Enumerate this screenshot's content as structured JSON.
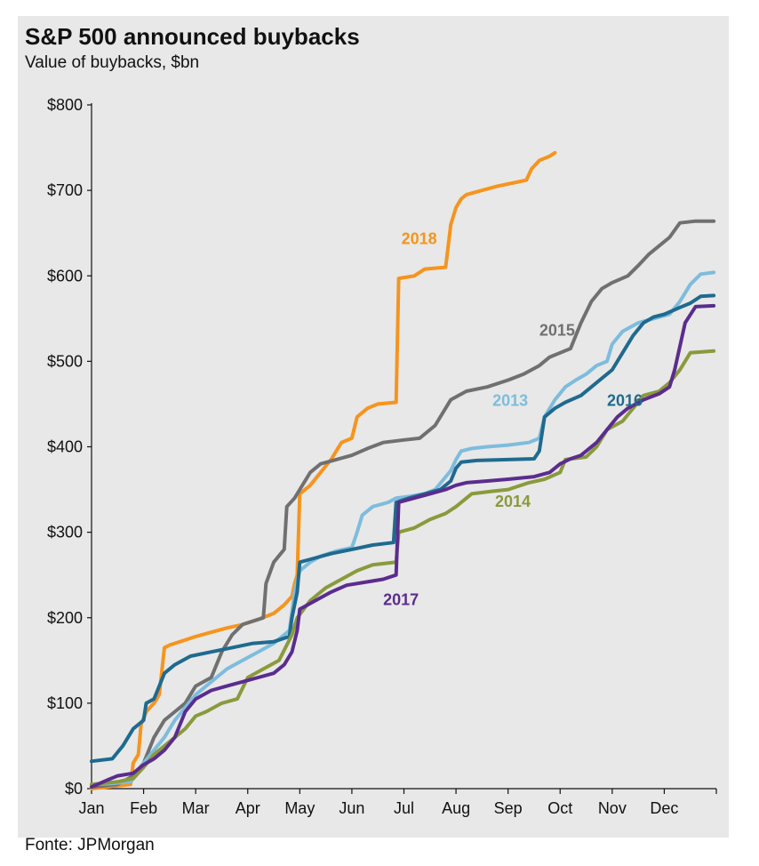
{
  "chart_data": {
    "type": "line",
    "title": "S&P 500 announced buybacks",
    "subtitle": "Value of buybacks, $bn",
    "source": "Fonte: JPMorgan",
    "x_ticks": [
      "Jan",
      "Feb",
      "Mar",
      "Apr",
      "May",
      "Jun",
      "Jul",
      "Aug",
      "Sep",
      "Oct",
      "Nov",
      "Dec"
    ],
    "y_ticks": [
      "$0",
      "$100",
      "$200",
      "$300",
      "$400",
      "$500",
      "$600",
      "$700",
      "$800"
    ],
    "xlim": [
      0,
      12
    ],
    "ylim": [
      0,
      800
    ],
    "xunit": "month index (0 = start of Jan)",
    "grid": false,
    "series": [
      {
        "name": "2018",
        "color": "#F7941D",
        "points": [
          [
            0.0,
            0
          ],
          [
            0.3,
            2
          ],
          [
            0.6,
            4
          ],
          [
            0.75,
            5
          ],
          [
            0.8,
            30
          ],
          [
            0.9,
            40
          ],
          [
            0.95,
            75
          ],
          [
            1.05,
            90
          ],
          [
            1.2,
            100
          ],
          [
            1.3,
            110
          ],
          [
            1.4,
            165
          ],
          [
            1.5,
            168
          ],
          [
            1.7,
            172
          ],
          [
            2.0,
            178
          ],
          [
            2.3,
            183
          ],
          [
            2.6,
            188
          ],
          [
            2.9,
            192
          ],
          [
            3.2,
            198
          ],
          [
            3.5,
            205
          ],
          [
            3.7,
            215
          ],
          [
            3.85,
            225
          ],
          [
            3.9,
            240
          ],
          [
            3.95,
            250
          ],
          [
            4.0,
            345
          ],
          [
            4.2,
            355
          ],
          [
            4.4,
            370
          ],
          [
            4.6,
            385
          ],
          [
            4.8,
            405
          ],
          [
            5.0,
            410
          ],
          [
            5.1,
            435
          ],
          [
            5.3,
            445
          ],
          [
            5.5,
            450
          ],
          [
            5.85,
            452
          ],
          [
            5.9,
            597
          ],
          [
            6.2,
            600
          ],
          [
            6.4,
            608
          ],
          [
            6.8,
            610
          ],
          [
            6.9,
            660
          ],
          [
            7.0,
            680
          ],
          [
            7.1,
            690
          ],
          [
            7.2,
            695
          ],
          [
            7.5,
            700
          ],
          [
            7.8,
            705
          ],
          [
            8.2,
            710
          ],
          [
            8.35,
            712
          ],
          [
            8.45,
            725
          ],
          [
            8.6,
            735
          ],
          [
            8.8,
            740
          ],
          [
            8.9,
            744
          ]
        ]
      },
      {
        "name": "2015",
        "color": "#707070",
        "points": [
          [
            0.0,
            2
          ],
          [
            0.5,
            5
          ],
          [
            0.8,
            15
          ],
          [
            1.0,
            30
          ],
          [
            1.2,
            60
          ],
          [
            1.4,
            80
          ],
          [
            1.6,
            90
          ],
          [
            1.8,
            100
          ],
          [
            2.0,
            120
          ],
          [
            2.3,
            130
          ],
          [
            2.5,
            160
          ],
          [
            2.7,
            180
          ],
          [
            2.9,
            192
          ],
          [
            3.2,
            198
          ],
          [
            3.3,
            200
          ],
          [
            3.35,
            240
          ],
          [
            3.5,
            265
          ],
          [
            3.7,
            280
          ],
          [
            3.75,
            330
          ],
          [
            3.9,
            340
          ],
          [
            4.0,
            350
          ],
          [
            4.2,
            370
          ],
          [
            4.4,
            380
          ],
          [
            4.7,
            385
          ],
          [
            5.0,
            390
          ],
          [
            5.3,
            398
          ],
          [
            5.6,
            405
          ],
          [
            6.0,
            408
          ],
          [
            6.3,
            410
          ],
          [
            6.6,
            425
          ],
          [
            6.9,
            455
          ],
          [
            7.2,
            465
          ],
          [
            7.6,
            470
          ],
          [
            8.0,
            478
          ],
          [
            8.3,
            485
          ],
          [
            8.6,
            495
          ],
          [
            8.8,
            505
          ],
          [
            9.0,
            510
          ],
          [
            9.2,
            515
          ],
          [
            9.3,
            530
          ],
          [
            9.4,
            545
          ],
          [
            9.6,
            570
          ],
          [
            9.8,
            585
          ],
          [
            10.0,
            592
          ],
          [
            10.3,
            600
          ],
          [
            10.5,
            612
          ],
          [
            10.7,
            625
          ],
          [
            10.9,
            635
          ],
          [
            11.1,
            645
          ],
          [
            11.3,
            662
          ],
          [
            11.6,
            664
          ],
          [
            11.95,
            664
          ]
        ]
      },
      {
        "name": "2013",
        "color": "#7EBCDD",
        "points": [
          [
            0.0,
            5
          ],
          [
            0.4,
            6
          ],
          [
            0.75,
            8
          ],
          [
            0.85,
            15
          ],
          [
            1.0,
            30
          ],
          [
            1.2,
            45
          ],
          [
            1.4,
            60
          ],
          [
            1.6,
            80
          ],
          [
            1.8,
            95
          ],
          [
            2.0,
            110
          ],
          [
            2.3,
            125
          ],
          [
            2.6,
            140
          ],
          [
            2.9,
            150
          ],
          [
            3.2,
            160
          ],
          [
            3.5,
            170
          ],
          [
            3.8,
            185
          ],
          [
            3.9,
            230
          ],
          [
            4.0,
            255
          ],
          [
            4.2,
            265
          ],
          [
            4.4,
            272
          ],
          [
            4.7,
            278
          ],
          [
            5.0,
            282
          ],
          [
            5.1,
            300
          ],
          [
            5.2,
            320
          ],
          [
            5.4,
            330
          ],
          [
            5.7,
            335
          ],
          [
            5.85,
            340
          ],
          [
            6.1,
            342
          ],
          [
            6.4,
            345
          ],
          [
            6.6,
            350
          ],
          [
            6.9,
            372
          ],
          [
            7.0,
            385
          ],
          [
            7.1,
            395
          ],
          [
            7.3,
            398
          ],
          [
            7.6,
            400
          ],
          [
            8.0,
            402
          ],
          [
            8.4,
            405
          ],
          [
            8.6,
            410
          ],
          [
            8.7,
            435
          ],
          [
            8.9,
            455
          ],
          [
            9.1,
            470
          ],
          [
            9.3,
            478
          ],
          [
            9.5,
            485
          ],
          [
            9.7,
            495
          ],
          [
            9.9,
            500
          ],
          [
            10.0,
            520
          ],
          [
            10.2,
            535
          ],
          [
            10.5,
            545
          ],
          [
            10.8,
            550
          ],
          [
            11.1,
            555
          ],
          [
            11.3,
            570
          ],
          [
            11.5,
            590
          ],
          [
            11.7,
            602
          ],
          [
            11.95,
            604
          ]
        ]
      },
      {
        "name": "2016",
        "color": "#1F6A8F",
        "points": [
          [
            0.0,
            32
          ],
          [
            0.4,
            35
          ],
          [
            0.6,
            50
          ],
          [
            0.8,
            70
          ],
          [
            1.0,
            80
          ],
          [
            1.05,
            100
          ],
          [
            1.2,
            105
          ],
          [
            1.3,
            120
          ],
          [
            1.4,
            135
          ],
          [
            1.6,
            145
          ],
          [
            1.9,
            155
          ],
          [
            2.3,
            160
          ],
          [
            2.7,
            165
          ],
          [
            3.1,
            170
          ],
          [
            3.5,
            172
          ],
          [
            3.8,
            178
          ],
          [
            3.85,
            200
          ],
          [
            3.95,
            230
          ],
          [
            4.0,
            265
          ],
          [
            4.3,
            270
          ],
          [
            4.6,
            275
          ],
          [
            5.0,
            280
          ],
          [
            5.4,
            285
          ],
          [
            5.8,
            288
          ],
          [
            5.85,
            335
          ],
          [
            6.1,
            340
          ],
          [
            6.4,
            345
          ],
          [
            6.7,
            350
          ],
          [
            6.9,
            360
          ],
          [
            7.0,
            375
          ],
          [
            7.1,
            382
          ],
          [
            7.4,
            384
          ],
          [
            8.0,
            385
          ],
          [
            8.5,
            386
          ],
          [
            8.6,
            395
          ],
          [
            8.7,
            435
          ],
          [
            8.9,
            445
          ],
          [
            9.1,
            452
          ],
          [
            9.4,
            460
          ],
          [
            9.6,
            470
          ],
          [
            9.8,
            480
          ],
          [
            10.0,
            490
          ],
          [
            10.2,
            510
          ],
          [
            10.4,
            530
          ],
          [
            10.6,
            545
          ],
          [
            10.8,
            552
          ],
          [
            11.0,
            555
          ],
          [
            11.3,
            563
          ],
          [
            11.5,
            568
          ],
          [
            11.7,
            576
          ],
          [
            11.95,
            577
          ]
        ]
      },
      {
        "name": "2014",
        "color": "#8A9A3C",
        "points": [
          [
            0.0,
            5
          ],
          [
            0.5,
            8
          ],
          [
            0.8,
            12
          ],
          [
            1.0,
            25
          ],
          [
            1.2,
            40
          ],
          [
            1.4,
            50
          ],
          [
            1.6,
            60
          ],
          [
            1.8,
            70
          ],
          [
            2.0,
            85
          ],
          [
            2.2,
            90
          ],
          [
            2.5,
            100
          ],
          [
            2.8,
            105
          ],
          [
            3.0,
            130
          ],
          [
            3.3,
            140
          ],
          [
            3.6,
            150
          ],
          [
            3.85,
            180
          ],
          [
            3.95,
            200
          ],
          [
            4.2,
            220
          ],
          [
            4.5,
            235
          ],
          [
            4.8,
            245
          ],
          [
            5.1,
            255
          ],
          [
            5.4,
            262
          ],
          [
            5.85,
            265
          ],
          [
            5.9,
            300
          ],
          [
            6.2,
            305
          ],
          [
            6.5,
            315
          ],
          [
            6.8,
            322
          ],
          [
            7.0,
            330
          ],
          [
            7.3,
            345
          ],
          [
            7.7,
            348
          ],
          [
            8.0,
            350
          ],
          [
            8.4,
            358
          ],
          [
            8.7,
            362
          ],
          [
            9.0,
            370
          ],
          [
            9.1,
            385
          ],
          [
            9.5,
            388
          ],
          [
            9.7,
            400
          ],
          [
            9.9,
            420
          ],
          [
            10.2,
            430
          ],
          [
            10.4,
            445
          ],
          [
            10.6,
            460
          ],
          [
            10.9,
            465
          ],
          [
            11.1,
            475
          ],
          [
            11.3,
            490
          ],
          [
            11.5,
            510
          ],
          [
            11.95,
            512
          ]
        ]
      },
      {
        "name": "2017",
        "color": "#5B2C8F",
        "points": [
          [
            0.0,
            2
          ],
          [
            0.3,
            10
          ],
          [
            0.5,
            15
          ],
          [
            0.8,
            18
          ],
          [
            1.0,
            28
          ],
          [
            1.2,
            35
          ],
          [
            1.4,
            45
          ],
          [
            1.6,
            60
          ],
          [
            1.8,
            90
          ],
          [
            2.0,
            105
          ],
          [
            2.3,
            115
          ],
          [
            2.6,
            120
          ],
          [
            2.9,
            125
          ],
          [
            3.2,
            130
          ],
          [
            3.5,
            135
          ],
          [
            3.7,
            145
          ],
          [
            3.85,
            160
          ],
          [
            3.95,
            185
          ],
          [
            4.0,
            210
          ],
          [
            4.3,
            220
          ],
          [
            4.6,
            230
          ],
          [
            4.9,
            238
          ],
          [
            5.3,
            242
          ],
          [
            5.6,
            245
          ],
          [
            5.85,
            250
          ],
          [
            5.9,
            335
          ],
          [
            6.2,
            340
          ],
          [
            6.5,
            345
          ],
          [
            6.8,
            350
          ],
          [
            7.0,
            355
          ],
          [
            7.2,
            358
          ],
          [
            7.6,
            360
          ],
          [
            8.0,
            362
          ],
          [
            8.5,
            365
          ],
          [
            8.8,
            370
          ],
          [
            9.0,
            380
          ],
          [
            9.2,
            386
          ],
          [
            9.4,
            390
          ],
          [
            9.7,
            405
          ],
          [
            9.9,
            420
          ],
          [
            10.1,
            435
          ],
          [
            10.3,
            445
          ],
          [
            10.6,
            455
          ],
          [
            10.9,
            462
          ],
          [
            11.1,
            470
          ],
          [
            11.2,
            490
          ],
          [
            11.4,
            545
          ],
          [
            11.6,
            564
          ],
          [
            11.95,
            565
          ]
        ]
      }
    ],
    "annotations": [
      {
        "text": "2018",
        "color": "#F7941D",
        "x": 5.95,
        "y": 637
      },
      {
        "text": "2015",
        "color": "#707070",
        "x": 8.6,
        "y": 530
      },
      {
        "text": "2013",
        "color": "#7EBCDD",
        "x": 7.7,
        "y": 448
      },
      {
        "text": "2016",
        "color": "#1F6A8F",
        "x": 9.9,
        "y": 448
      },
      {
        "text": "2014",
        "color": "#8A9A3C",
        "x": 7.75,
        "y": 330
      },
      {
        "text": "2017",
        "color": "#5B2C8F",
        "x": 5.6,
        "y": 215
      }
    ]
  }
}
